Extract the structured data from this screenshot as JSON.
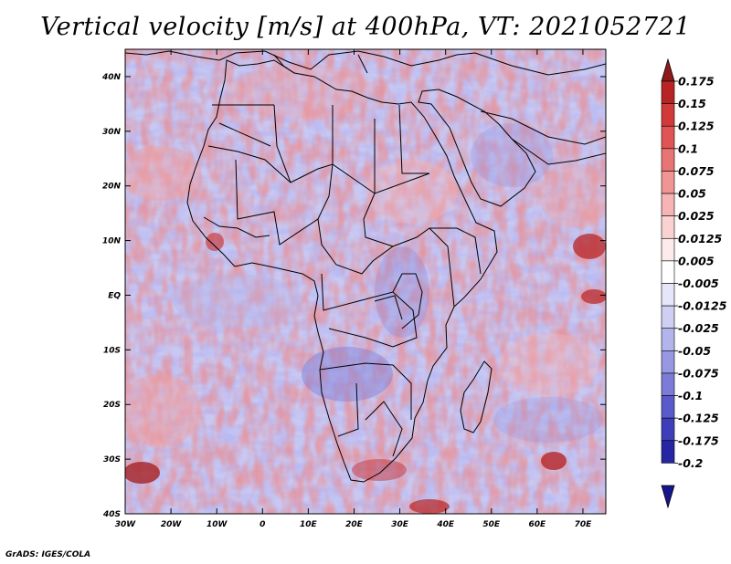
{
  "title": "Vertical velocity [m/s] at 400hPa, VT: 2021052721",
  "credit": "GrADS: IGES/COLA",
  "map": {
    "lon_range": [
      -30,
      75
    ],
    "lat_range": [
      -40,
      45
    ],
    "lon_ticks": [
      "30W",
      "20W",
      "10W",
      "0",
      "10E",
      "20E",
      "30E",
      "40E",
      "50E",
      "60E",
      "70E"
    ],
    "lat_ticks": [
      "40N",
      "30N",
      "20N",
      "10N",
      "EQ",
      "10S",
      "20S",
      "30S",
      "40S"
    ]
  },
  "colorbar": {
    "labels": [
      "0.175",
      "0.15",
      "0.125",
      "0.1",
      "0.075",
      "0.05",
      "0.025",
      "0.0125",
      "0.005",
      "-0.005",
      "-0.0125",
      "-0.025",
      "-0.05",
      "-0.075",
      "-0.1",
      "-0.125",
      "-0.175",
      "-0.2"
    ],
    "colors": [
      "#8e1a1a",
      "#b82424",
      "#d23a3a",
      "#e05454",
      "#e87474",
      "#f09494",
      "#f6b4b4",
      "#fad2d2",
      "#fdeaea",
      "#ffffff",
      "#e6e6fa",
      "#cfcff3",
      "#b4b4ec",
      "#9898e2",
      "#7c7cd8",
      "#5a5acc",
      "#3e3eba",
      "#2626a2",
      "#16168c"
    ]
  }
}
